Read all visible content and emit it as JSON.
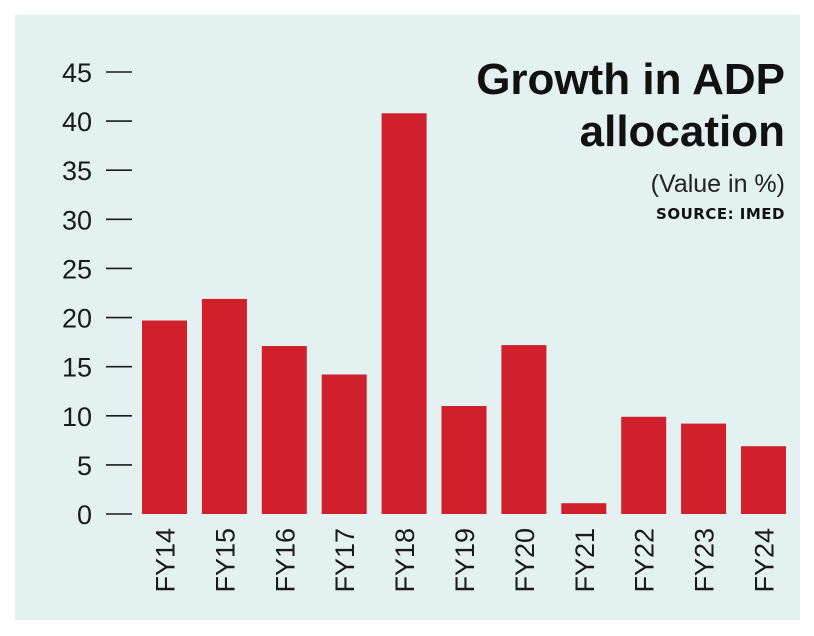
{
  "chart_data": {
    "type": "bar",
    "title_lines": [
      "Growth in ADP",
      "allocation"
    ],
    "subtitle": "(Value in %)",
    "source": "SOURCE: IMED",
    "categories": [
      "FY14",
      "FY15",
      "FY16",
      "FY17",
      "FY18",
      "FY19",
      "FY20",
      "FY21",
      "FY22",
      "FY23",
      "FY24"
    ],
    "values": [
      19.7,
      21.9,
      17.1,
      14.2,
      40.8,
      11.0,
      17.2,
      1.1,
      9.9,
      9.2,
      6.9
    ],
    "yticks": [
      0,
      5,
      10,
      15,
      20,
      25,
      30,
      35,
      40,
      45
    ],
    "ylim": [
      0,
      45
    ],
    "grid": false,
    "colors": {
      "bar": "#d0202c",
      "background": "#e4f1f1",
      "text": "#1a1a1a"
    }
  }
}
